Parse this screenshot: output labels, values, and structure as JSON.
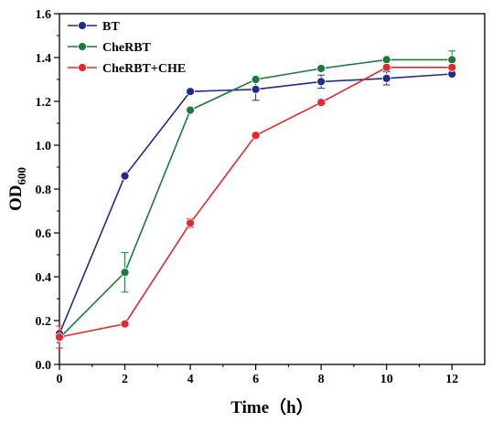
{
  "chart_data": {
    "type": "line",
    "xlabel": "Time（h）",
    "ylabel_main": "OD",
    "ylabel_sub": "600",
    "xlim": [
      0,
      13
    ],
    "ylim": [
      0,
      1.6
    ],
    "xticks": [
      0,
      2,
      4,
      6,
      8,
      10,
      12
    ],
    "xtick_labels": [
      "0",
      "2",
      "4",
      "6",
      "8",
      "10",
      "12"
    ],
    "yticks": [
      0,
      0.2,
      0.4,
      0.6,
      0.8,
      1.0,
      1.2,
      1.4,
      1.6
    ],
    "ytick_labels": [
      "0.0",
      "0.2",
      "0.4",
      "0.6",
      "0.8",
      "1.0",
      "1.2",
      "1.4",
      "1.6"
    ],
    "grid": false,
    "legend_position": "top-left",
    "series": [
      {
        "name": "BT",
        "color": "#1f2d8a",
        "x": [
          0,
          2,
          4,
          6,
          8,
          10,
          12
        ],
        "y": [
          0.14,
          0.86,
          1.245,
          1.255,
          1.29,
          1.305,
          1.325
        ],
        "err": [
          0.01,
          0.01,
          0.01,
          0.05,
          0.03,
          0.03,
          0.01
        ]
      },
      {
        "name": "CheRBT",
        "color": "#1a7a3a",
        "x": [
          0,
          2,
          4,
          6,
          8,
          10,
          12
        ],
        "y": [
          0.12,
          0.42,
          1.16,
          1.3,
          1.35,
          1.39,
          1.39
        ],
        "err": [
          0.01,
          0.09,
          0.01,
          0.01,
          0.01,
          0.01,
          0.04
        ]
      },
      {
        "name": "CheRBT+CHE",
        "color": "#e8262b",
        "x": [
          0,
          2,
          4,
          6,
          8,
          10,
          12
        ],
        "y": [
          0.125,
          0.185,
          0.645,
          1.045,
          1.195,
          1.355,
          1.355
        ],
        "err": [
          0.05,
          0.01,
          0.02,
          0.01,
          0.01,
          0.01,
          0.01
        ]
      }
    ]
  }
}
